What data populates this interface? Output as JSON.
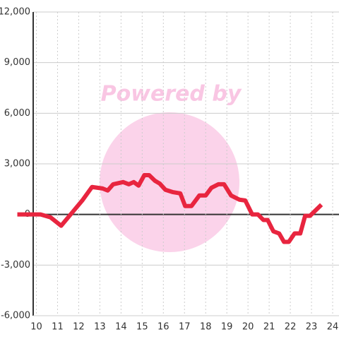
{
  "chart_data": {
    "type": "line",
    "watermark": "Powered by",
    "x": [
      9.1,
      10.2,
      10.67,
      11.17,
      11.67,
      12.17,
      12.63,
      13.13,
      13.37,
      13.63,
      14.1,
      14.37,
      14.6,
      14.83,
      15.1,
      15.33,
      15.6,
      15.83,
      16.1,
      16.43,
      16.8,
      17.03,
      17.33,
      17.7,
      18.0,
      18.27,
      18.6,
      18.87,
      19.2,
      19.6,
      19.87,
      20.2,
      20.47,
      20.73,
      20.93,
      21.2,
      21.47,
      21.7,
      21.93,
      22.2,
      22.47,
      22.7,
      22.93,
      23.2,
      23.47
    ],
    "series": [
      {
        "color": "#e8253f",
        "values": [
          0,
          0,
          -170,
          -670,
          80,
          830,
          1630,
          1540,
          1420,
          1790,
          1920,
          1790,
          1920,
          1710,
          2330,
          2330,
          2000,
          1830,
          1460,
          1330,
          1250,
          500,
          500,
          1125,
          1125,
          1580,
          1790,
          1790,
          1125,
          875,
          830,
          0,
          0,
          -330,
          -330,
          -1000,
          -1125,
          -1625,
          -1625,
          -1125,
          -1125,
          -80,
          -80,
          250,
          580
        ]
      }
    ],
    "xlim": [
      9.85,
      24.3
    ],
    "xticks": [
      10,
      11,
      12,
      13,
      14,
      15,
      16,
      17,
      18,
      19,
      20,
      21,
      22,
      23,
      24
    ],
    "ylim": [
      -6000,
      12000
    ],
    "yticks": [
      {
        "value": -6000,
        "label": "-6,000"
      },
      {
        "value": -3000,
        "label": "-3,000"
      },
      0,
      {
        "value": 3000,
        "label": "3,000"
      },
      {
        "value": 6000,
        "label": "6,000"
      },
      {
        "value": 9000,
        "label": "9,000"
      },
      {
        "value": 12000,
        "label": "12,000"
      }
    ],
    "grid": true
  }
}
